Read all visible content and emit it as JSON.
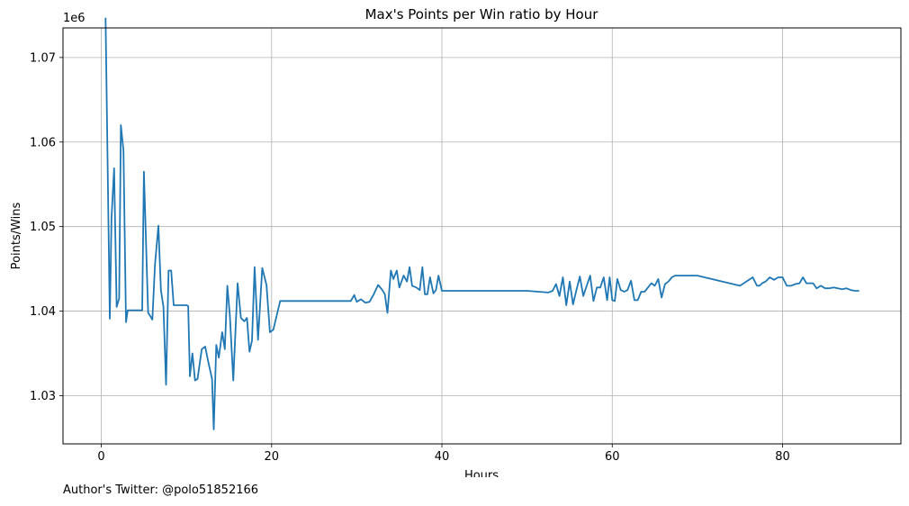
{
  "chart_data": {
    "type": "line",
    "title": "Max's Points per Win ratio by Hour",
    "xlabel": "Hours",
    "ylabel": "Points/Wins",
    "y_offset_label": "1e6",
    "xlim": [
      -4.5,
      93.9
    ],
    "ylim": [
      1.0243,
      1.0735
    ],
    "x_ticks": [
      0,
      20,
      40,
      60,
      80
    ],
    "y_ticks": [
      1.03,
      1.04,
      1.05,
      1.06,
      1.07
    ],
    "x_tick_labels": [
      "0",
      "20",
      "40",
      "60",
      "80"
    ],
    "y_tick_labels": [
      "1.03",
      "1.04",
      "1.05",
      "1.06",
      "1.07"
    ],
    "grid": true,
    "line_color": "#1f77b4",
    "series": [
      {
        "x": [
          0.5,
          1.0,
          1.2,
          1.5,
          1.8,
          2.1,
          2.3,
          2.6,
          2.9,
          3.1,
          3.5,
          4.0,
          4.4,
          4.8,
          5.0,
          5.5,
          5.7,
          6.0,
          6.3,
          6.7,
          7.0,
          7.3,
          7.6,
          7.9,
          8.2,
          8.5,
          9.0,
          9.5,
          10.0,
          10.2,
          10.4,
          10.7,
          11.0,
          11.3,
          11.8,
          12.2,
          12.6,
          13.0,
          13.2,
          13.5,
          13.8,
          14.2,
          14.5,
          14.8,
          15.1,
          15.5,
          16.0,
          16.4,
          16.8,
          17.1,
          17.4,
          17.7,
          18.0,
          18.4,
          18.9,
          19.4,
          19.8,
          20.2,
          21.0,
          24.0,
          27.0,
          28.5,
          29.0,
          29.3,
          29.7,
          30.0,
          30.5,
          31.0,
          31.5,
          32.0,
          32.5,
          33.0,
          33.3,
          33.6,
          34.0,
          34.3,
          34.7,
          35.0,
          35.5,
          35.9,
          36.2,
          36.5,
          37.0,
          37.4,
          37.7,
          38.0,
          38.3,
          38.6,
          39.0,
          39.3,
          39.6,
          40.0,
          40.5,
          45.0,
          50.0,
          52.5,
          53.0,
          53.4,
          53.8,
          54.2,
          54.6,
          55.0,
          55.4,
          55.8,
          56.2,
          56.6,
          57.0,
          57.4,
          57.8,
          58.2,
          58.6,
          59.0,
          59.4,
          59.7,
          60.0,
          60.3,
          60.6,
          61.0,
          61.4,
          61.8,
          62.2,
          62.6,
          63.0,
          63.4,
          63.8,
          64.2,
          64.6,
          65.0,
          65.4,
          65.8,
          66.2,
          66.6,
          67.0,
          67.4,
          70.0,
          75.0,
          76.5,
          77.0,
          77.3,
          77.6,
          78.0,
          78.5,
          79.0,
          79.5,
          80.0,
          80.5,
          81.0,
          81.5,
          82.0,
          82.4,
          82.8,
          83.2,
          83.6,
          84.0,
          84.5,
          85.0,
          85.5,
          86.0,
          86.5,
          87.0,
          87.5,
          88.0,
          88.5,
          89.0
        ],
        "values": [
          1.0747,
          1.0391,
          1.051,
          1.0569,
          1.0405,
          1.0415,
          1.062,
          1.059,
          1.0387,
          1.0401,
          1.0401,
          1.0401,
          1.0401,
          1.0401,
          1.0565,
          1.0398,
          1.0395,
          1.039,
          1.0455,
          1.0501,
          1.0425,
          1.0405,
          1.0313,
          1.0448,
          1.0448,
          1.0407,
          1.0407,
          1.0407,
          1.0407,
          1.0406,
          1.0323,
          1.035,
          1.0318,
          1.032,
          1.0355,
          1.0358,
          1.0338,
          1.032,
          1.026,
          1.036,
          1.0345,
          1.0375,
          1.0355,
          1.043,
          1.0395,
          1.0318,
          1.0433,
          1.0392,
          1.0388,
          1.0392,
          1.0352,
          1.0365,
          1.0452,
          1.0366,
          1.0451,
          1.0431,
          1.0375,
          1.0378,
          1.0412,
          1.0412,
          1.0412,
          1.0412,
          1.0412,
          1.0412,
          1.0419,
          1.0411,
          1.0414,
          1.041,
          1.0411,
          1.042,
          1.0431,
          1.0425,
          1.042,
          1.0398,
          1.0448,
          1.0438,
          1.0448,
          1.0428,
          1.0442,
          1.0435,
          1.0452,
          1.043,
          1.0428,
          1.0425,
          1.0452,
          1.042,
          1.042,
          1.044,
          1.0421,
          1.0425,
          1.0442,
          1.0424,
          1.0424,
          1.0424,
          1.0424,
          1.0422,
          1.0424,
          1.0432,
          1.0418,
          1.044,
          1.0407,
          1.0435,
          1.0408,
          1.0425,
          1.0441,
          1.0418,
          1.043,
          1.0442,
          1.0412,
          1.0428,
          1.0428,
          1.044,
          1.0413,
          1.044,
          1.0413,
          1.0412,
          1.0438,
          1.0425,
          1.0423,
          1.0425,
          1.0436,
          1.0413,
          1.0413,
          1.0423,
          1.0423,
          1.0428,
          1.0433,
          1.043,
          1.0438,
          1.0416,
          1.0432,
          1.0435,
          1.044,
          1.0442,
          1.0442,
          1.043,
          1.044,
          1.043,
          1.043,
          1.0433,
          1.0435,
          1.044,
          1.0437,
          1.044,
          1.044,
          1.043,
          1.043,
          1.0432,
          1.0433,
          1.044,
          1.0433,
          1.0433,
          1.0433,
          1.0427,
          1.043,
          1.0427,
          1.0427,
          1.0428,
          1.0427,
          1.0426,
          1.0427,
          1.0425,
          1.0424,
          1.0424
        ]
      }
    ]
  },
  "footer": {
    "text": "Author's Twitter: @polo51852166"
  }
}
